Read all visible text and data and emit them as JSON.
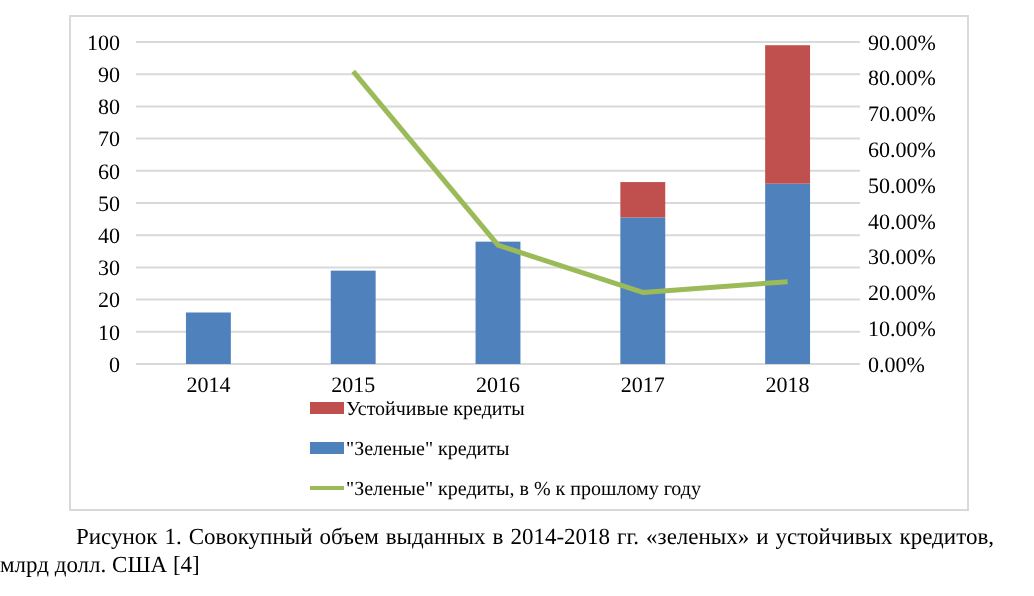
{
  "chart_data": {
    "type": "bar",
    "stacked": true,
    "categories": [
      "2014",
      "2015",
      "2016",
      "2017",
      "2018"
    ],
    "series": [
      {
        "name": "\"Зеленые\" кредиты",
        "color": "#4f81bd",
        "values": [
          16,
          29,
          38,
          45.5,
          56
        ]
      },
      {
        "name": "Устойчивые кредиты",
        "color": "#c0504d",
        "values": [
          null,
          null,
          null,
          11,
          43
        ]
      },
      {
        "name": "\"Зеленые\" кредиты, в % к прошлому году",
        "type": "line",
        "axis": "y2",
        "color": "#9bbb59",
        "values": [
          null,
          81.8,
          33.2,
          20,
          23
        ]
      }
    ],
    "ylim": [
      0,
      100
    ],
    "yticks": [
      0,
      10,
      20,
      30,
      40,
      50,
      60,
      70,
      80,
      90,
      100
    ],
    "y2lim": [
      0,
      90
    ],
    "y2ticks": [
      {
        "value": 0,
        "label": "0.00%"
      },
      {
        "value": 10,
        "label": "10.00%"
      },
      {
        "value": 20,
        "label": "20.00%"
      },
      {
        "value": 30,
        "label": "30.00%"
      },
      {
        "value": 40,
        "label": "40.00%"
      },
      {
        "value": 50,
        "label": "50.00%"
      },
      {
        "value": 60,
        "label": "60.00%"
      },
      {
        "value": 70,
        "label": "70.00%"
      },
      {
        "value": 80,
        "label": "80.00%"
      },
      {
        "value": 90,
        "label": "90.00%"
      }
    ],
    "grid": "y",
    "legend": "bottom",
    "marker": "none",
    "line_style": "solid",
    "annotations": [
      "Рисунок 1. Совокупный объем выданных в 2014-2018 гг. «зеленых» и устойчивых кредитов, млрд долл. США [4]"
    ]
  }
}
